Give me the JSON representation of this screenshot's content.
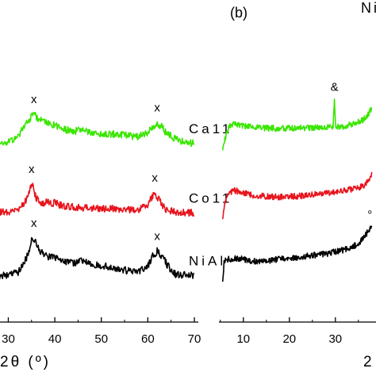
{
  "chart_data": [
    {
      "type": "line",
      "panel": "left",
      "title": "",
      "xlabel": "2θ (º)",
      "ylabel": "",
      "xlim": [
        26,
        70
      ],
      "xticks": [
        30,
        40,
        50,
        60,
        70
      ],
      "grid": false,
      "series": [
        {
          "name": "NiAl",
          "color": "#000000",
          "offset": 2,
          "x": [
            26,
            28,
            30,
            32,
            33,
            34,
            35,
            35.5,
            36,
            37,
            38,
            40,
            42,
            44,
            46,
            48,
            50,
            52,
            54,
            56,
            58,
            60,
            61,
            62,
            63,
            64,
            65,
            66,
            68,
            70
          ],
          "y": [
            0.08,
            0.09,
            0.1,
            0.16,
            0.3,
            0.55,
            0.92,
            1.0,
            0.88,
            0.66,
            0.56,
            0.52,
            0.42,
            0.4,
            0.44,
            0.37,
            0.33,
            0.29,
            0.24,
            0.2,
            0.2,
            0.32,
            0.55,
            0.68,
            0.56,
            0.38,
            0.22,
            0.12,
            0.1,
            0.09
          ],
          "markers": [
            {
              "symbol": "x",
              "x": 35.5
            },
            {
              "symbol": "x",
              "x": 62
            }
          ]
        },
        {
          "name": "Co11",
          "color": "#e8141c",
          "offset": 1,
          "x": [
            26,
            28,
            30,
            32,
            33,
            34,
            34.5,
            35,
            35.5,
            36,
            37,
            38,
            40,
            42,
            44,
            46,
            48,
            50,
            52,
            54,
            56,
            58,
            60,
            61,
            61.5,
            62,
            63,
            64,
            66,
            68,
            70
          ],
          "y": [
            0.1,
            0.11,
            0.13,
            0.2,
            0.3,
            0.55,
            0.8,
            1.0,
            0.82,
            0.55,
            0.38,
            0.42,
            0.4,
            0.3,
            0.28,
            0.26,
            0.24,
            0.22,
            0.22,
            0.2,
            0.19,
            0.2,
            0.35,
            0.62,
            0.72,
            0.6,
            0.36,
            0.18,
            0.12,
            0.1,
            0.09
          ],
          "markers": [
            {
              "symbol": "x",
              "x": 35
            },
            {
              "symbol": "x",
              "x": 61.5
            }
          ]
        },
        {
          "name": "Ca11",
          "color": "#39e600",
          "offset": 0,
          "x": [
            26,
            28,
            30,
            32,
            33,
            34,
            35,
            35.5,
            36,
            37,
            38,
            40,
            42,
            44,
            46,
            48,
            50,
            52,
            54,
            56,
            58,
            60,
            61,
            62,
            63,
            64,
            66,
            68,
            70
          ],
          "y": [
            0.02,
            0.05,
            0.1,
            0.3,
            0.5,
            0.72,
            0.92,
            1.0,
            0.92,
            0.8,
            0.74,
            0.66,
            0.52,
            0.46,
            0.5,
            0.44,
            0.4,
            0.38,
            0.36,
            0.32,
            0.3,
            0.4,
            0.58,
            0.74,
            0.6,
            0.4,
            0.22,
            0.12,
            0.08
          ],
          "markers": [
            {
              "symbol": "#",
              "x": 26.5
            },
            {
              "symbol": "x",
              "x": 35.5
            },
            {
              "symbol": "x",
              "x": 62
            }
          ]
        }
      ]
    },
    {
      "type": "line",
      "panel": "right",
      "title": "(b)",
      "header_text": "Ni",
      "xlabel": "2",
      "ylabel": "",
      "xlim": [
        4,
        39
      ],
      "xticks": [
        10,
        20,
        30
      ],
      "grid": false,
      "series": [
        {
          "name": "",
          "color": "#000000",
          "offset": 2,
          "x": [
            5.5,
            5.8,
            6.2,
            7,
            8,
            10,
            12,
            14,
            16,
            18,
            20,
            22,
            24,
            26,
            28,
            30,
            32,
            34,
            35,
            36,
            37,
            38
          ],
          "y": [
            0.0,
            0.35,
            0.4,
            0.4,
            0.42,
            0.4,
            0.36,
            0.36,
            0.38,
            0.4,
            0.42,
            0.44,
            0.46,
            0.48,
            0.5,
            0.54,
            0.58,
            0.64,
            0.7,
            0.78,
            0.9,
            1.0
          ],
          "markers": [
            {
              "symbol": "°",
              "x": 37.5
            }
          ]
        },
        {
          "name": "",
          "color": "#e8141c",
          "offset": 1,
          "x": [
            5.5,
            6,
            6.5,
            7,
            8,
            9,
            10,
            12,
            14,
            16,
            18,
            20,
            22,
            24,
            26,
            28,
            30,
            32,
            34,
            36,
            37,
            38
          ],
          "y": [
            0.0,
            0.3,
            0.48,
            0.55,
            0.6,
            0.58,
            0.55,
            0.5,
            0.48,
            0.46,
            0.46,
            0.47,
            0.48,
            0.5,
            0.52,
            0.54,
            0.56,
            0.6,
            0.64,
            0.7,
            0.8,
            1.0
          ],
          "markers": []
        },
        {
          "name": "",
          "color": "#39e600",
          "offset": 0,
          "x": [
            5.5,
            6,
            7,
            8,
            10,
            12,
            14,
            16,
            18,
            20,
            22,
            24,
            26,
            28,
            29.5,
            29.8,
            30.1,
            30.5,
            32,
            34,
            36,
            37,
            38
          ],
          "y": [
            0.0,
            0.2,
            0.45,
            0.48,
            0.44,
            0.42,
            0.4,
            0.4,
            0.4,
            0.4,
            0.4,
            0.4,
            0.42,
            0.42,
            0.44,
            0.9,
            0.44,
            0.42,
            0.44,
            0.48,
            0.56,
            0.66,
            0.8
          ],
          "markers": [
            {
              "symbol": "&",
              "x": 29.8
            }
          ]
        }
      ]
    }
  ]
}
